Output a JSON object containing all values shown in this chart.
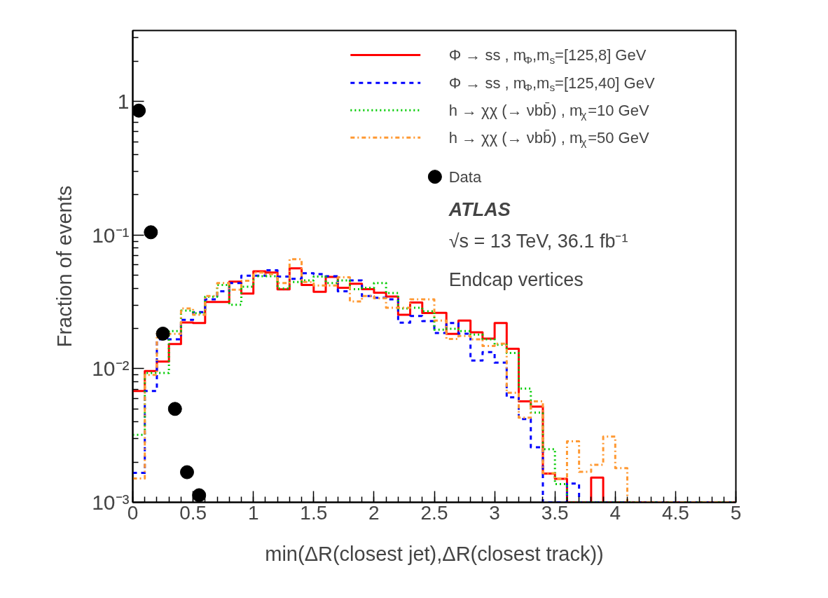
{
  "chart_data": {
    "type": "histogram",
    "xlabel": "min(ΔR(closest jet),ΔR(closest track))",
    "ylabel": "Fraction of events",
    "bins": [
      0,
      0.1,
      0.2,
      0.3,
      0.4,
      0.5,
      0.6,
      0.7,
      0.8,
      0.9,
      1,
      1.1,
      1.2,
      1.3,
      1.4,
      1.5,
      1.6,
      1.7,
      1.8,
      1.9,
      2,
      2.1,
      2.2,
      2.3,
      2.4,
      2.5,
      2.6,
      2.7,
      2.8,
      2.9,
      3,
      3.1,
      3.2,
      3.3,
      3.4,
      3.5,
      3.6,
      3.7,
      3.8,
      3.9,
      4,
      4.1,
      4.2,
      4.3,
      4.4,
      4.5,
      4.6,
      4.7,
      4.8,
      4.9,
      5
    ],
    "log": "y",
    "xlim": [
      0,
      5
    ],
    "ylim": [
      0.001,
      3.4
    ],
    "xticks": [
      0,
      0.5,
      1,
      1.5,
      2,
      2.5,
      3,
      3.5,
      4,
      4.5,
      5
    ],
    "yticks": [
      {
        "value": 0.001,
        "label": "10⁻³"
      },
      {
        "value": 0.01,
        "label": "10⁻²"
      },
      {
        "value": 0.1,
        "label": "10⁻¹"
      },
      1
    ],
    "grid": false,
    "legend": "top right",
    "series": [
      {
        "name": "Φ → ss , m$_{Φ}$,m$_{s}$=[125,8] GeV",
        "color": "#ff0000",
        "line_style": "solid",
        "values": [
          0.0068,
          0.0096,
          0.0113,
          0.0153,
          0.0222,
          0.022,
          0.0316,
          0.0316,
          0.0448,
          0.0365,
          0.0535,
          0.0524,
          0.0392,
          0.0564,
          0.0423,
          0.0376,
          0.0487,
          0.0403,
          0.0433,
          0.0394,
          0.0371,
          0.0347,
          0.0253,
          0.0313,
          0.0261,
          0.0262,
          0.0182,
          0.0229,
          0.0187,
          0.0168,
          0.022,
          0.0141,
          0.0057,
          0.0052,
          0.00164,
          0.0015,
          null,
          null,
          0.00153,
          null,
          null,
          null,
          null,
          null,
          null,
          null,
          null,
          null,
          null,
          null
        ]
      },
      {
        "name": "Φ → ss , m$_{Φ}$,m$_{s}$=[125,40] GeV",
        "color": "#0000ff",
        "line_style": "dashed",
        "values": [
          0.00166,
          0.0068,
          0.0166,
          0.0166,
          0.0232,
          0.0265,
          0.033,
          0.038,
          0.0437,
          0.0497,
          0.0497,
          0.0546,
          0.0489,
          0.047,
          0.0518,
          0.051,
          0.0493,
          0.038,
          0.0458,
          0.035,
          0.034,
          0.033,
          0.0221,
          0.0248,
          0.0227,
          0.0185,
          0.022,
          0.0183,
          0.0115,
          0.0133,
          0.0111,
          0.0061,
          0.0042,
          0.00258,
          null,
          null,
          0.00138,
          null,
          null,
          null,
          null,
          null,
          null,
          null,
          null,
          null,
          null,
          null,
          null,
          null
        ]
      },
      {
        "name": "h → χχ (→ νbb̄) , m$_{χ}$=10 GeV",
        "color": "#00cc00",
        "line_style": "dotted",
        "values": [
          0.0032,
          0.0093,
          0.0093,
          0.0191,
          0.0272,
          0.026,
          0.0346,
          0.0423,
          0.0301,
          0.0411,
          0.0493,
          0.0493,
          0.0398,
          0.0446,
          0.0458,
          0.0489,
          0.0437,
          0.0458,
          0.0394,
          0.0403,
          0.0437,
          0.0368,
          0.0282,
          0.0286,
          0.0269,
          0.0196,
          0.0199,
          0.0191,
          0.018,
          0.0166,
          0.0151,
          0.0131,
          0.0071,
          0.0047,
          0.0025,
          0.00137,
          null,
          null,
          null,
          null,
          null,
          null,
          null,
          null,
          null,
          null,
          null,
          null,
          null,
          null
        ]
      },
      {
        "name": "h → χχ (→ νbb̄) , m$_{χ}$=50 GeV",
        "color": "#ff9933",
        "line_style": "dashdot",
        "values": [
          0.00151,
          0.009,
          0.0183,
          0.0182,
          0.0282,
          0.0253,
          0.035,
          0.0437,
          0.039,
          0.0455,
          0.0524,
          0.051,
          0.0437,
          0.066,
          0.0446,
          0.0419,
          0.0419,
          0.0483,
          0.0319,
          0.035,
          0.0336,
          0.0286,
          0.0286,
          0.033,
          0.033,
          0.0229,
          0.0167,
          0.0176,
          0.0166,
          0.0148,
          0.0154,
          0.0066,
          0.0043,
          0.0057,
          0.00165,
          0.0015,
          0.00286,
          0.00169,
          0.00191,
          0.0031,
          0.0018,
          null,
          null,
          null,
          null,
          null,
          null,
          null,
          null,
          null
        ]
      },
      {
        "name": "Data",
        "type": "scatter",
        "marker": "circle",
        "color": "#000000",
        "x": [
          0.05,
          0.15,
          0.25,
          0.35,
          0.45,
          0.55
        ],
        "values": [
          0.855,
          0.105,
          0.0183,
          0.005,
          0.00168,
          0.00113
        ]
      }
    ],
    "annotations": [
      "ATLAS",
      "√s = 13 TeV, 36.1 fb⁻¹",
      "Endcap vertices"
    ]
  }
}
